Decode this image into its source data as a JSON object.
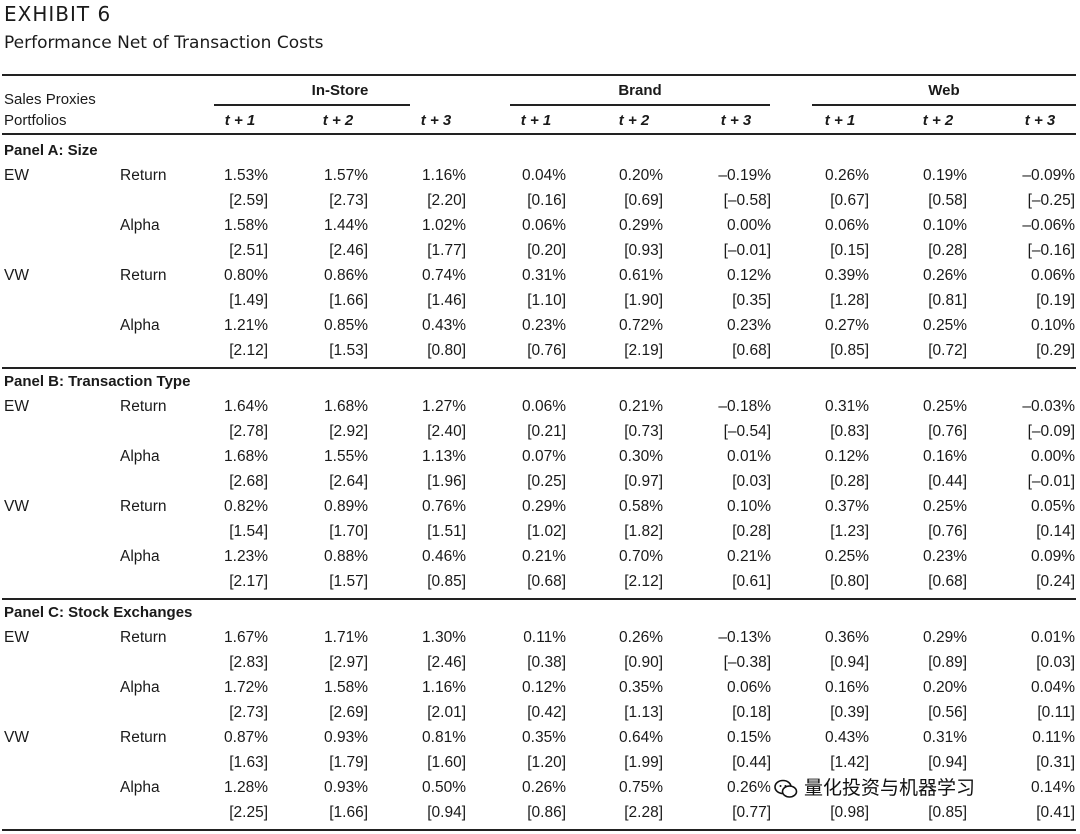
{
  "exhibit": {
    "title": "EXHIBIT 6",
    "subtitle": "Performance Net of Transaction Costs"
  },
  "header": {
    "row_label_1": "Sales Proxies",
    "row_label_2": "Portfolios",
    "groups": [
      "In-Store",
      "Brand",
      "Web"
    ],
    "periods": [
      "t + 1",
      "t + 2",
      "t + 3"
    ]
  },
  "panels": [
    {
      "title": "Panel A: Size",
      "rows": [
        {
          "weight": "EW",
          "measure": "Return",
          "values": [
            "1.53%",
            "1.57%",
            "1.16%",
            "0.04%",
            "0.20%",
            "–0.19%",
            "0.26%",
            "0.19%",
            "–0.09%"
          ]
        },
        {
          "weight": "",
          "measure": "",
          "values": [
            "[2.59]",
            "[2.73]",
            "[2.20]",
            "[0.16]",
            "[0.69]",
            "[–0.58]",
            "[0.67]",
            "[0.58]",
            "[–0.25]"
          ]
        },
        {
          "weight": "",
          "measure": "Alpha",
          "values": [
            "1.58%",
            "1.44%",
            "1.02%",
            "0.06%",
            "0.29%",
            "0.00%",
            "0.06%",
            "0.10%",
            "–0.06%"
          ]
        },
        {
          "weight": "",
          "measure": "",
          "values": [
            "[2.51]",
            "[2.46]",
            "[1.77]",
            "[0.20]",
            "[0.93]",
            "[–0.01]",
            "[0.15]",
            "[0.28]",
            "[–0.16]"
          ]
        },
        {
          "weight": "VW",
          "measure": "Return",
          "values": [
            "0.80%",
            "0.86%",
            "0.74%",
            "0.31%",
            "0.61%",
            "0.12%",
            "0.39%",
            "0.26%",
            "0.06%"
          ]
        },
        {
          "weight": "",
          "measure": "",
          "values": [
            "[1.49]",
            "[1.66]",
            "[1.46]",
            "[1.10]",
            "[1.90]",
            "[0.35]",
            "[1.28]",
            "[0.81]",
            "[0.19]"
          ]
        },
        {
          "weight": "",
          "measure": "Alpha",
          "values": [
            "1.21%",
            "0.85%",
            "0.43%",
            "0.23%",
            "0.72%",
            "0.23%",
            "0.27%",
            "0.25%",
            "0.10%"
          ]
        },
        {
          "weight": "",
          "measure": "",
          "values": [
            "[2.12]",
            "[1.53]",
            "[0.80]",
            "[0.76]",
            "[2.19]",
            "[0.68]",
            "[0.85]",
            "[0.72]",
            "[0.29]"
          ]
        }
      ]
    },
    {
      "title": "Panel B: Transaction Type",
      "rows": [
        {
          "weight": "EW",
          "measure": "Return",
          "values": [
            "1.64%",
            "1.68%",
            "1.27%",
            "0.06%",
            "0.21%",
            "–0.18%",
            "0.31%",
            "0.25%",
            "–0.03%"
          ]
        },
        {
          "weight": "",
          "measure": "",
          "values": [
            "[2.78]",
            "[2.92]",
            "[2.40]",
            "[0.21]",
            "[0.73]",
            "[–0.54]",
            "[0.83]",
            "[0.76]",
            "[–0.09]"
          ]
        },
        {
          "weight": "",
          "measure": "Alpha",
          "values": [
            "1.68%",
            "1.55%",
            "1.13%",
            "0.07%",
            "0.30%",
            "0.01%",
            "0.12%",
            "0.16%",
            "0.00%"
          ]
        },
        {
          "weight": "",
          "measure": "",
          "values": [
            "[2.68]",
            "[2.64]",
            "[1.96]",
            "[0.25]",
            "[0.97]",
            "[0.03]",
            "[0.28]",
            "[0.44]",
            "[–0.01]"
          ]
        },
        {
          "weight": "VW",
          "measure": "Return",
          "values": [
            "0.82%",
            "0.89%",
            "0.76%",
            "0.29%",
            "0.58%",
            "0.10%",
            "0.37%",
            "0.25%",
            "0.05%"
          ]
        },
        {
          "weight": "",
          "measure": "",
          "values": [
            "[1.54]",
            "[1.70]",
            "[1.51]",
            "[1.02]",
            "[1.82]",
            "[0.28]",
            "[1.23]",
            "[0.76]",
            "[0.14]"
          ]
        },
        {
          "weight": "",
          "measure": "Alpha",
          "values": [
            "1.23%",
            "0.88%",
            "0.46%",
            "0.21%",
            "0.70%",
            "0.21%",
            "0.25%",
            "0.23%",
            "0.09%"
          ]
        },
        {
          "weight": "",
          "measure": "",
          "values": [
            "[2.17]",
            "[1.57]",
            "[0.85]",
            "[0.68]",
            "[2.12]",
            "[0.61]",
            "[0.80]",
            "[0.68]",
            "[0.24]"
          ]
        }
      ]
    },
    {
      "title": "Panel C: Stock Exchanges",
      "rows": [
        {
          "weight": "EW",
          "measure": "Return",
          "values": [
            "1.67%",
            "1.71%",
            "1.30%",
            "0.11%",
            "0.26%",
            "–0.13%",
            "0.36%",
            "0.29%",
            "0.01%"
          ]
        },
        {
          "weight": "",
          "measure": "",
          "values": [
            "[2.83]",
            "[2.97]",
            "[2.46]",
            "[0.38]",
            "[0.90]",
            "[–0.38]",
            "[0.94]",
            "[0.89]",
            "[0.03]"
          ]
        },
        {
          "weight": "",
          "measure": "Alpha",
          "values": [
            "1.72%",
            "1.58%",
            "1.16%",
            "0.12%",
            "0.35%",
            "0.06%",
            "0.16%",
            "0.20%",
            "0.04%"
          ]
        },
        {
          "weight": "",
          "measure": "",
          "values": [
            "[2.73]",
            "[2.69]",
            "[2.01]",
            "[0.42]",
            "[1.13]",
            "[0.18]",
            "[0.39]",
            "[0.56]",
            "[0.11]"
          ]
        },
        {
          "weight": "VW",
          "measure": "Return",
          "values": [
            "0.87%",
            "0.93%",
            "0.81%",
            "0.35%",
            "0.64%",
            "0.15%",
            "0.43%",
            "0.31%",
            "0.11%"
          ]
        },
        {
          "weight": "",
          "measure": "",
          "values": [
            "[1.63]",
            "[1.79]",
            "[1.60]",
            "[1.20]",
            "[1.99]",
            "[0.44]",
            "[1.42]",
            "[0.94]",
            "[0.31]"
          ]
        },
        {
          "weight": "",
          "measure": "Alpha",
          "values": [
            "1.28%",
            "0.93%",
            "0.50%",
            "0.26%",
            "0.75%",
            "0.26%",
            "",
            "",
            "0.14%"
          ]
        },
        {
          "weight": "",
          "measure": "",
          "values": [
            "[2.25]",
            "[1.66]",
            "[0.94]",
            "[0.86]",
            "[2.28]",
            "[0.77]",
            "[0.98]",
            "[0.85]",
            "[0.41]"
          ]
        }
      ]
    }
  ],
  "watermark": {
    "text": "量化投资与机器学习",
    "icon": "wechat-icon"
  }
}
